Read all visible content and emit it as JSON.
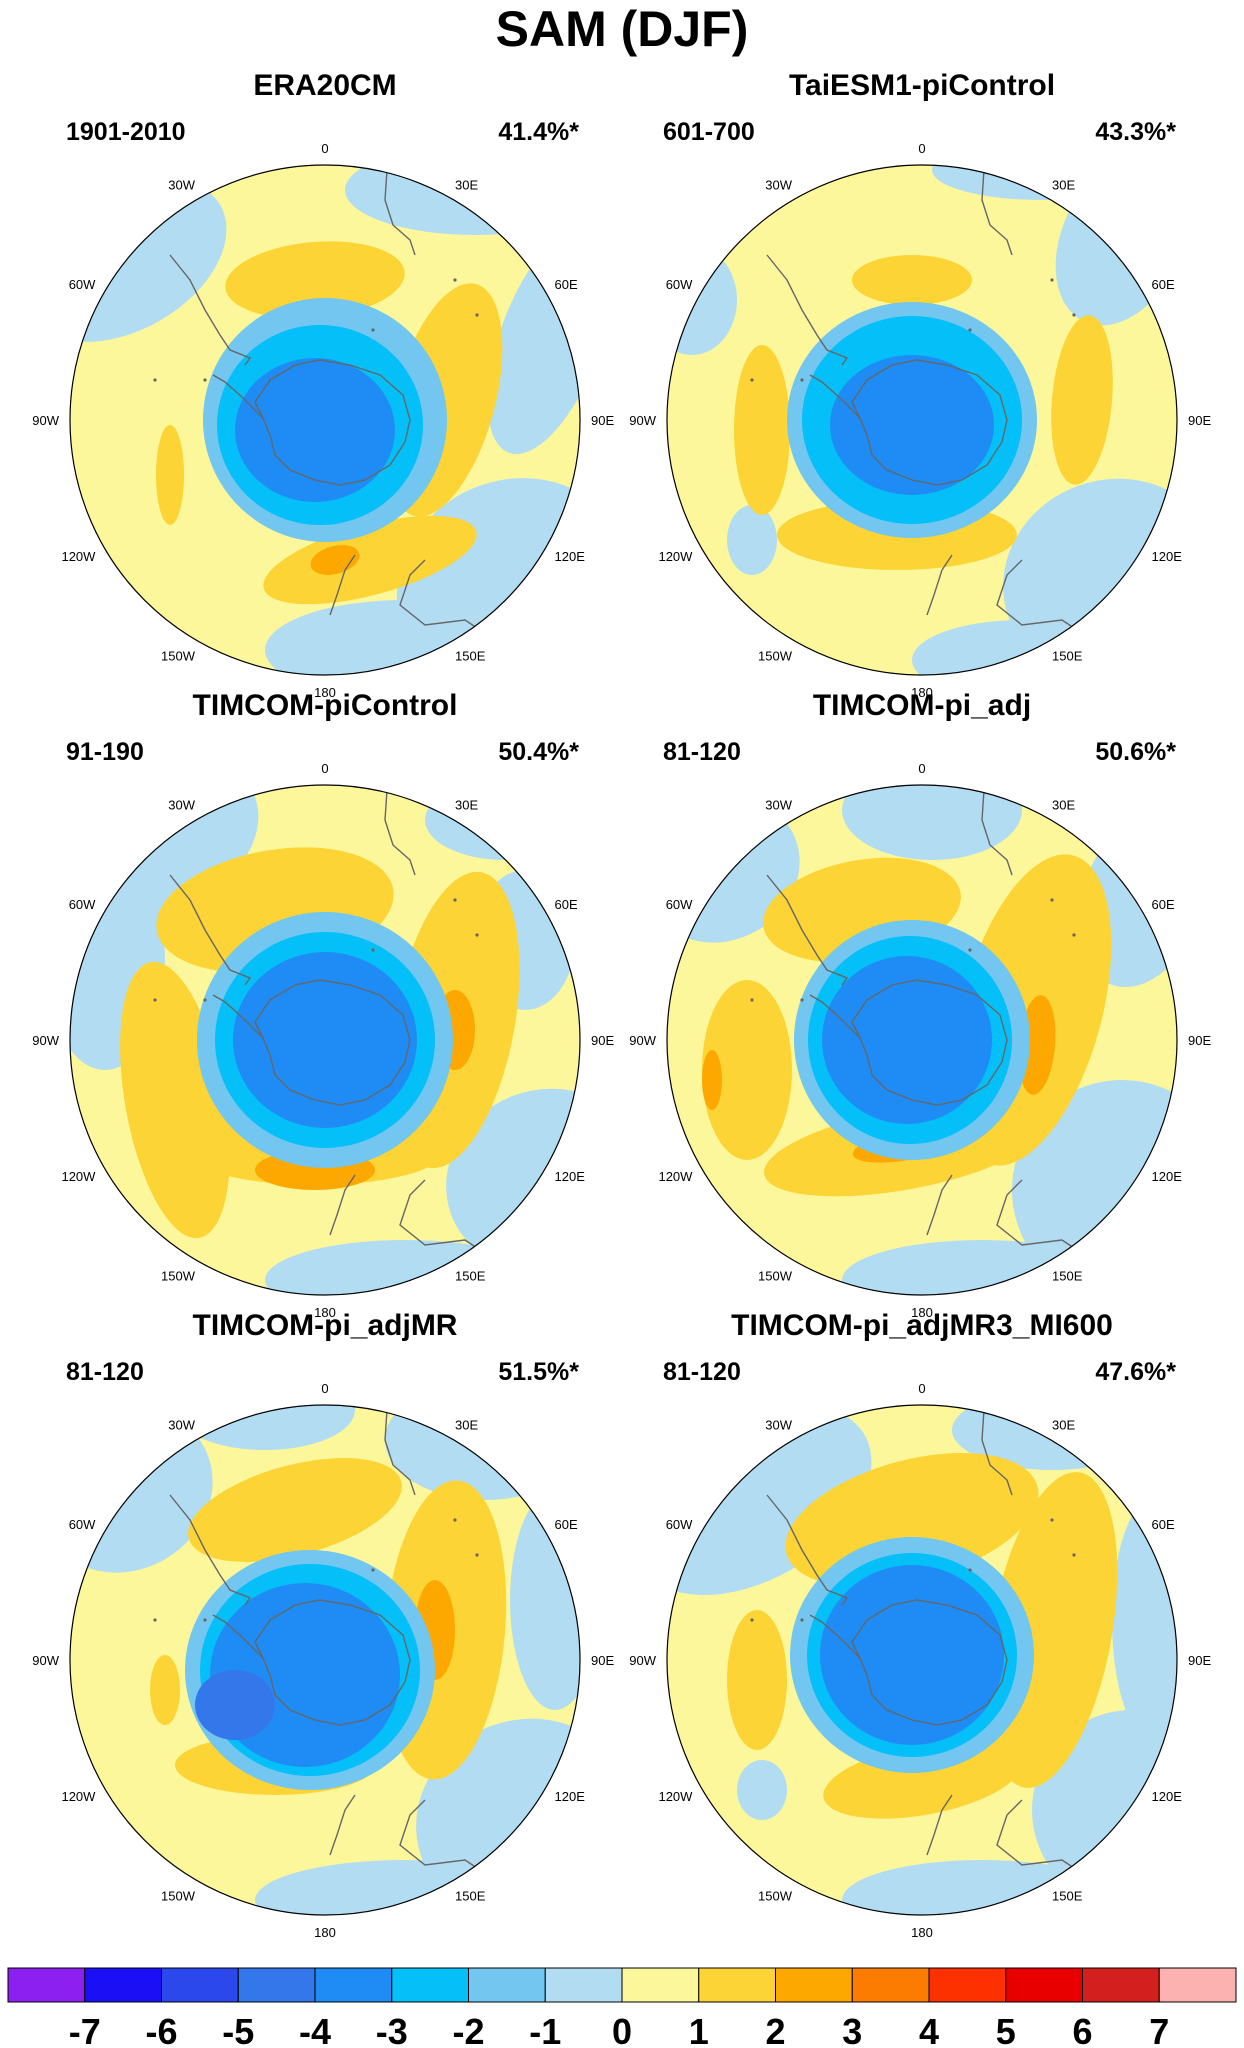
{
  "figure": {
    "title": "SAM (DJF)",
    "longitude_labels": [
      "0",
      "30E",
      "60E",
      "90E",
      "120E",
      "150E",
      "180",
      "150W",
      "120W",
      "90W",
      "60W",
      "30W"
    ],
    "panels": [
      {
        "name": "ERA20CM",
        "period": "1901-2010",
        "variance": "41.4%*"
      },
      {
        "name": "TaiESM1-piControl",
        "period": "601-700",
        "variance": "43.3%*"
      },
      {
        "name": "TIMCOM-piControl",
        "period": "91-190",
        "variance": "50.4%*"
      },
      {
        "name": "TIMCOM-pi_adj",
        "period": "81-120",
        "variance": "50.6%*"
      },
      {
        "name": "TIMCOM-pi_adjMR",
        "period": "81-120",
        "variance": "51.5%*"
      },
      {
        "name": "TIMCOM-pi_adjMR3_MI600",
        "period": "81-120",
        "variance": "47.6%*"
      }
    ],
    "colorbar": {
      "labels": [
        "-7",
        "-6",
        "-5",
        "-4",
        "-3",
        "-2",
        "-1",
        "0",
        "1",
        "2",
        "3",
        "4",
        "5",
        "6",
        "7"
      ],
      "colors": [
        "#8b20f0",
        "#1a0ff5",
        "#2b48ec",
        "#3377ea",
        "#1e8cf4",
        "#05bff8",
        "#72c6ef",
        "#b2dcf2",
        "#fdf79b",
        "#fcd435",
        "#fca800",
        "#fb7c00",
        "#fd3000",
        "#e80000",
        "#d41f1f",
        "#fdb2b2"
      ]
    },
    "palette": {
      "ice": "#b2dcf2",
      "zero": "#fdf79b",
      "pos1": "#fcd435",
      "pos2": "#fca800",
      "neg1": "#72c6ef",
      "neg2": "#05bff8",
      "neg3": "#1e8cf4",
      "neg4": "#3377ea",
      "coast": "#666666"
    }
  }
}
